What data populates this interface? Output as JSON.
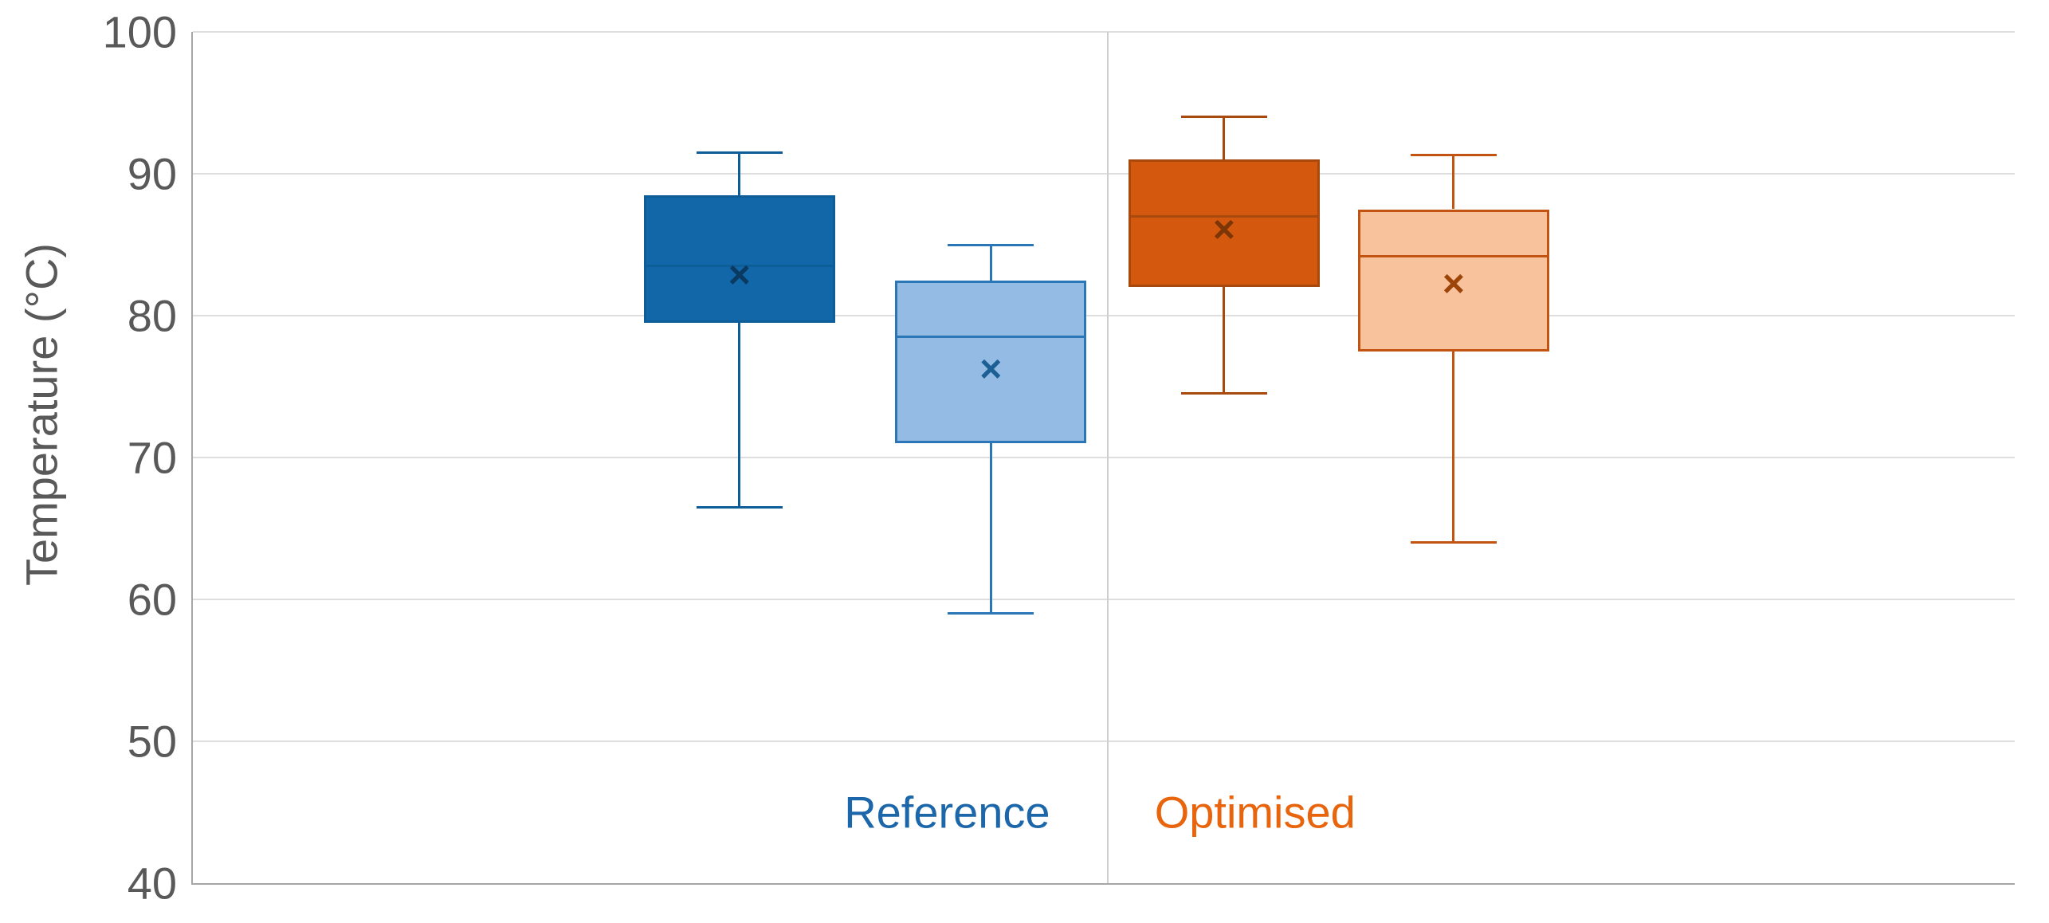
{
  "chart_data": {
    "type": "boxplot",
    "title": "",
    "xlabel": "",
    "ylabel": "Temperature (°C)",
    "ylim": [
      40,
      100
    ],
    "yticks": [
      100,
      90,
      80,
      70,
      60,
      50,
      40
    ],
    "grid": "horizontal",
    "legend": "none",
    "mean_marker": "×",
    "box_width_frac": 0.105,
    "cap_width_frac": 0.45,
    "divider_x_frac": 0.502,
    "group_labels": [
      {
        "text": "Reference",
        "color": "#1B67A9",
        "x_frac": 0.414,
        "y_value": 45
      },
      {
        "text": "Optimised",
        "color": "#E8650D",
        "x_frac": 0.583,
        "y_value": 45
      }
    ],
    "boxes": [
      {
        "group": "Reference",
        "x_frac": 0.3,
        "fill": "#1167A8",
        "stroke": "#0D5D98",
        "marker": "#0A3A61",
        "min": 66.5,
        "q1": 79.5,
        "median": 83.5,
        "mean": 82.8,
        "q3": 88.5,
        "max": 91.5
      },
      {
        "group": "Reference",
        "x_frac": 0.438,
        "fill": "#94BBE3",
        "stroke": "#2A76B6",
        "marker": "#1C5F94",
        "min": 59.0,
        "q1": 71.0,
        "median": 78.5,
        "mean": 76.2,
        "q3": 82.5,
        "max": 85.0
      },
      {
        "group": "Optimised",
        "x_frac": 0.566,
        "fill": "#D4590E",
        "stroke": "#A84A0D",
        "marker": "#7C3606",
        "min": 74.5,
        "q1": 82.0,
        "median": 87.0,
        "mean": 86.0,
        "q3": 91.0,
        "max": 94.0
      },
      {
        "group": "Optimised",
        "x_frac": 0.692,
        "fill": "#F8C29C",
        "stroke": "#C05410",
        "marker": "#9C4509",
        "min": 64.0,
        "q1": 77.5,
        "median": 84.2,
        "mean": 82.2,
        "q3": 87.5,
        "max": 91.3
      }
    ],
    "colors": {
      "axis": "#A6A6A6",
      "grid": "#DEDEDE",
      "divider": "#CFCFCF",
      "tick_text": "#595959",
      "background": "#FFFFFF"
    }
  }
}
